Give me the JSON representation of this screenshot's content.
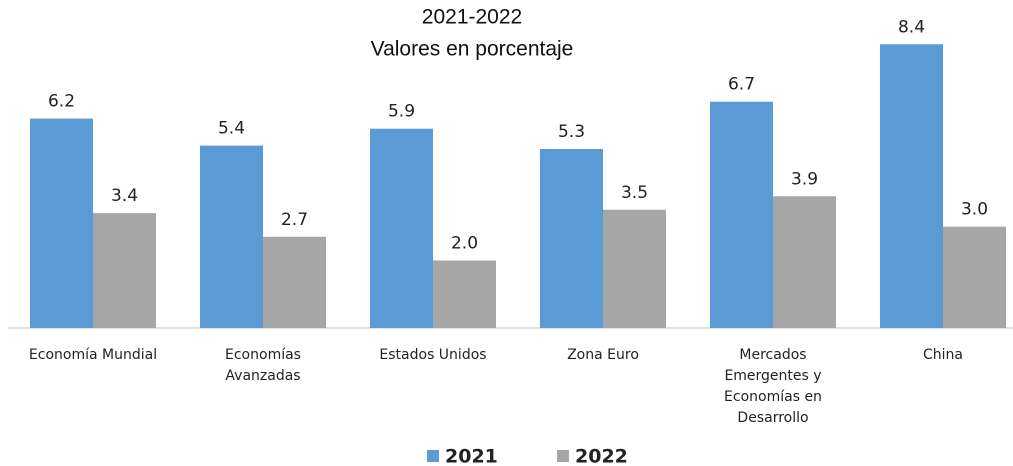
{
  "chart_data": {
    "type": "bar",
    "title": "2021-2022",
    "subtitle": "Valores en porcentaje",
    "categories": [
      "Economía Mundial",
      "Economías Avanzadas",
      "Estados Unidos",
      "Zona Euro",
      "Mercados Emergentes y Economías en Desarrollo",
      "China"
    ],
    "series": [
      {
        "name": "2021",
        "color": "#5b9bd5",
        "values": [
          6.2,
          5.4,
          5.9,
          5.3,
          6.7,
          8.4
        ],
        "value_labels": [
          "6.2",
          "5.4",
          "5.9",
          "5.3",
          "6.7",
          "8.4"
        ]
      },
      {
        "name": "2022",
        "color": "#a6a6a6",
        "values": [
          3.4,
          2.7,
          2.0,
          3.5,
          3.9,
          3.0
        ],
        "value_labels": [
          "3.4",
          "2.7",
          "2.0",
          "3.5",
          "3.9",
          "3.0"
        ]
      }
    ],
    "ylim": [
      0,
      9
    ],
    "legend": "bottom"
  }
}
